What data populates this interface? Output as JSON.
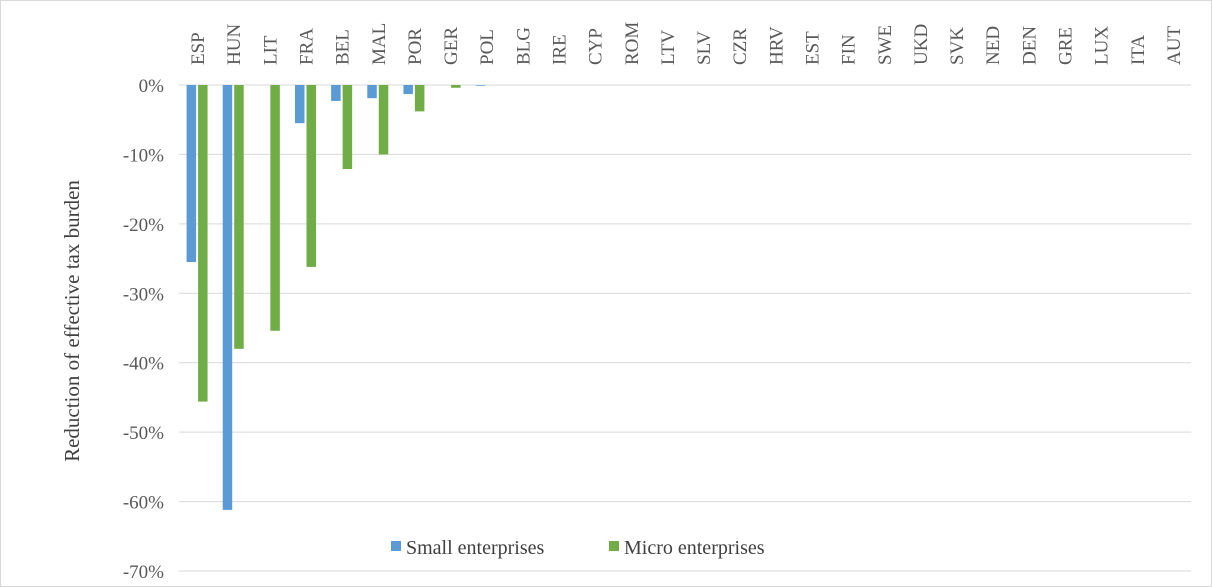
{
  "chart_data": {
    "type": "bar",
    "title": "",
    "xlabel": "",
    "ylabel": "Reduction of effective tax burden",
    "ylim": [
      -70,
      0
    ],
    "yticks": [
      0,
      -10,
      -20,
      -30,
      -40,
      -50,
      -60,
      -70
    ],
    "ytick_suffix": "%",
    "grid": true,
    "category_axis_position": "top",
    "category_label_orientation": "vertical",
    "legend_position": "bottom-inside",
    "categories": [
      "ESP",
      "HUN",
      "LIT",
      "FRA",
      "BEL",
      "MAL",
      "POR",
      "GER",
      "POL",
      "BLG",
      "IRE",
      "CYP",
      "ROM",
      "LTV",
      "SLV",
      "CZR",
      "HRV",
      "EST",
      "FIN",
      "SWE",
      "UKD",
      "SVK",
      "NED",
      "DEN",
      "GRE",
      "LUX",
      "ITA",
      "AUT"
    ],
    "series": [
      {
        "name": "Small enterprises",
        "color": "#5b9bd5",
        "values": [
          -25.5,
          -61.2,
          0,
          -5.5,
          -2.3,
          -1.9,
          -1.3,
          0,
          -0.1,
          0,
          0,
          0,
          0,
          0,
          0,
          0,
          0,
          0,
          0,
          0,
          0,
          0,
          0,
          0,
          0,
          0,
          0,
          0
        ]
      },
      {
        "name": "Micro enterprises",
        "color": "#70ad47",
        "values": [
          -45.6,
          -38.0,
          -35.4,
          -26.2,
          -12.1,
          -10.0,
          -3.8,
          -0.4,
          0,
          0,
          0,
          0,
          0,
          0,
          0,
          0,
          0,
          0,
          0,
          0,
          0,
          0,
          0,
          0,
          0,
          0,
          0,
          0
        ]
      }
    ]
  }
}
